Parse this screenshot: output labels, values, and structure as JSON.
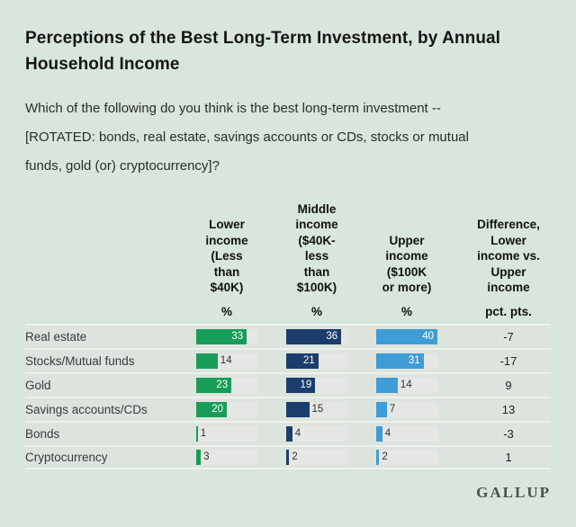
{
  "chart_data": {
    "type": "bar",
    "title": "Perceptions of the Best Long-Term Investment, by Annual Household Income",
    "subtitle": "Which of the following do you think is the best long-term investment -- [ROTATED: bonds, real estate, savings accounts or CDs, stocks or mutual funds, gold (or) cryptocurrency]?",
    "categories": [
      "Real estate",
      "Stocks/Mutual funds",
      "Gold",
      "Savings accounts/CDs",
      "Bonds",
      "Cryptocurrency"
    ],
    "series": [
      {
        "name": "Lower income (Less than $40K)",
        "header_lines": "Lower\nincome\n(Less\nthan\n$40K)",
        "unit": "%",
        "color": "#189d58",
        "values": [
          33,
          14,
          23,
          20,
          1,
          3
        ]
      },
      {
        "name": "Middle income ($40K-less than $100K)",
        "header_lines": "Middle\nincome\n($40K-\nless\nthan\n$100K)",
        "unit": "%",
        "color": "#1b3d6d",
        "values": [
          36,
          21,
          19,
          15,
          4,
          2
        ]
      },
      {
        "name": "Upper income ($100K or more)",
        "header_lines": "Upper\nincome\n($100K\nor more)",
        "unit": "%",
        "color": "#3f9cd6",
        "values": [
          40,
          31,
          14,
          7,
          4,
          2
        ]
      }
    ],
    "difference_column": {
      "name": "Difference, Lower income vs. Upper income",
      "header_lines": "Difference,\nLower\nincome vs.\nUpper\nincome",
      "unit": "pct. pts.",
      "values": [
        -7,
        -17,
        9,
        13,
        -3,
        1
      ]
    },
    "xlim": [
      0,
      40
    ],
    "grid": false,
    "legend": "none",
    "source": "GALLUP"
  }
}
